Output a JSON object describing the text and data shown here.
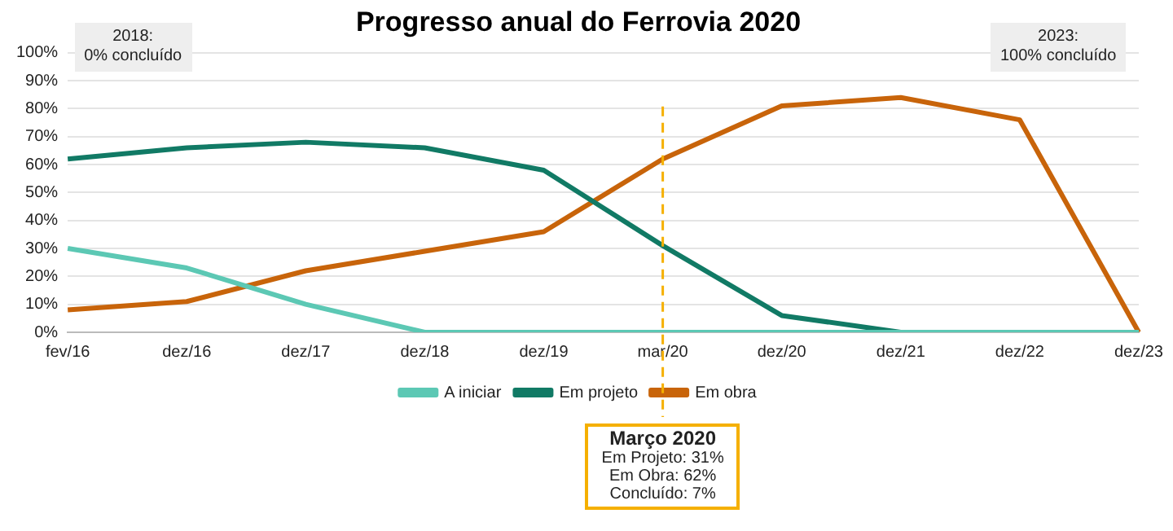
{
  "chart_data": {
    "type": "line",
    "title": "Progresso anual do Ferrovia 2020",
    "categories": [
      "fev/16",
      "dez/16",
      "dez/17",
      "dez/18",
      "dez/19",
      "mar/20",
      "dez/20",
      "dez/21",
      "dez/22",
      "dez/23"
    ],
    "series": [
      {
        "name": "A iniciar",
        "color": "#5cc8b4",
        "values": [
          30,
          23,
          10,
          0,
          0,
          0,
          0,
          0,
          0,
          0
        ]
      },
      {
        "name": "Em projeto",
        "color": "#117a65",
        "values": [
          62,
          66,
          68,
          66,
          58,
          31,
          6,
          0,
          0,
          0
        ]
      },
      {
        "name": "Em obra",
        "color": "#c8640a",
        "values": [
          8,
          11,
          22,
          29,
          36,
          62,
          81,
          84,
          76,
          0
        ]
      }
    ],
    "ylim": [
      0,
      100
    ],
    "yticks": [
      {
        "value": 0,
        "label": "0%"
      },
      {
        "value": 10,
        "label": "10%"
      },
      {
        "value": 20,
        "label": "20%"
      },
      {
        "value": 30,
        "label": "30%"
      },
      {
        "value": 40,
        "label": "40%"
      },
      {
        "value": 50,
        "label": "50%"
      },
      {
        "value": 60,
        "label": "60%"
      },
      {
        "value": 70,
        "label": "70%"
      },
      {
        "value": 80,
        "label": "80%"
      },
      {
        "value": 90,
        "label": "90%"
      },
      {
        "value": 100,
        "label": "100%"
      }
    ],
    "grid": "y",
    "legend": "bottom",
    "marker": "none",
    "line_style": "solid",
    "ref_lines": [
      {
        "axis": "x",
        "value": "mar/20",
        "color": "#f5b000",
        "line_style": "dashed"
      }
    ],
    "annotations": [
      "2018:\n0% concluído",
      "2023:\n100% concluído",
      "Março 2020\nEm Projeto: 31%\nEm Obra: 62%\nConcluído: 7%"
    ]
  }
}
